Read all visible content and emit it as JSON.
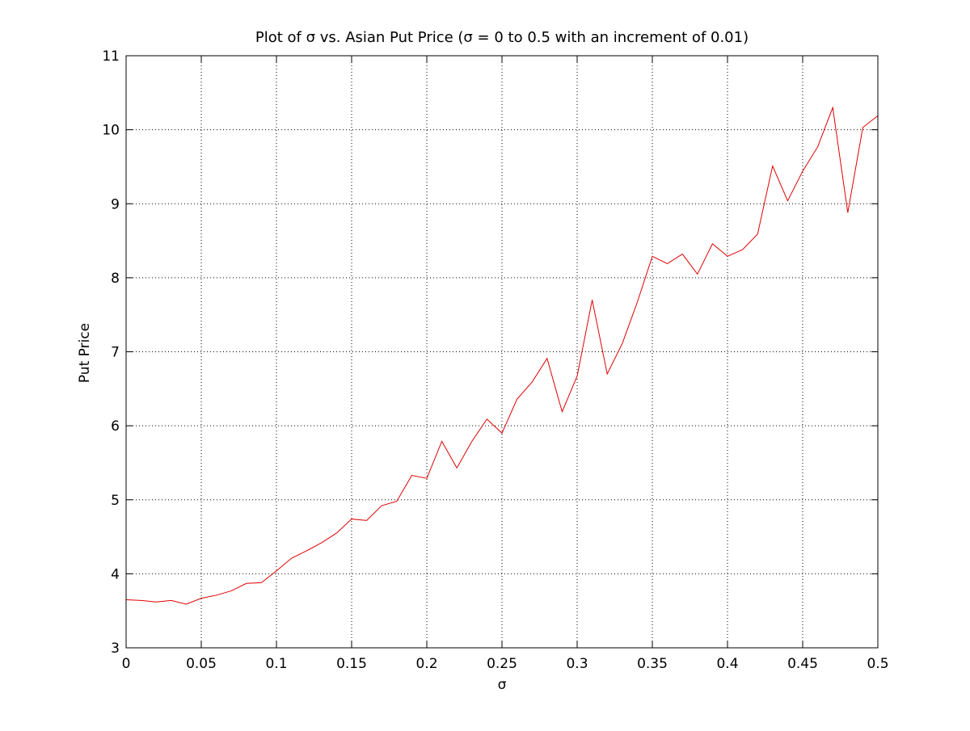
{
  "chart_data": {
    "type": "line",
    "title": "Plot of σ vs. Asian Put Price (σ = 0 to 0.5 with an increment of 0.01)",
    "xlabel": "σ",
    "ylabel": "Put Price",
    "xlim": [
      0,
      0.5
    ],
    "ylim": [
      3,
      11
    ],
    "xticks": [
      0,
      0.05,
      0.1,
      0.15,
      0.2,
      0.25,
      0.3,
      0.35,
      0.4,
      0.45,
      0.5
    ],
    "xtick_labels": [
      "0",
      "0.05",
      "0.1",
      "0.15",
      "0.2",
      "0.25",
      "0.3",
      "0.35",
      "0.4",
      "0.45",
      "0.5"
    ],
    "yticks": [
      3,
      4,
      5,
      6,
      7,
      8,
      9,
      10,
      11
    ],
    "ytick_labels": [
      "3",
      "4",
      "5",
      "6",
      "7",
      "8",
      "9",
      "10",
      "11"
    ],
    "grid": true,
    "grid_style": "dotted",
    "series": [
      {
        "color": "#e00000",
        "x": [
          0,
          0.01,
          0.02,
          0.03,
          0.04,
          0.05,
          0.06,
          0.07,
          0.08,
          0.09,
          0.1,
          0.11,
          0.12,
          0.13,
          0.14,
          0.15,
          0.16,
          0.17,
          0.18,
          0.19,
          0.2,
          0.21,
          0.22,
          0.23,
          0.24,
          0.25,
          0.26,
          0.27,
          0.28,
          0.29,
          0.3,
          0.31,
          0.32,
          0.33,
          0.34,
          0.35,
          0.36,
          0.37,
          0.38,
          0.39,
          0.4,
          0.41,
          0.42,
          0.43,
          0.44,
          0.45,
          0.46,
          0.47,
          0.48,
          0.49,
          0.5
        ],
        "values": [
          3.65,
          3.64,
          3.62,
          3.64,
          3.59,
          3.67,
          3.71,
          3.77,
          3.87,
          3.88,
          4.04,
          4.21,
          4.31,
          4.42,
          4.55,
          4.74,
          4.72,
          4.92,
          4.98,
          5.33,
          5.29,
          5.79,
          5.43,
          5.79,
          6.09,
          5.9,
          6.36,
          6.59,
          6.91,
          6.19,
          6.67,
          7.7,
          6.7,
          7.11,
          7.67,
          8.29,
          8.19,
          8.32,
          8.05,
          8.46,
          8.29,
          8.38,
          8.59,
          9.51,
          9.04,
          9.44,
          9.77,
          10.3,
          8.88,
          10.03,
          10.19
        ]
      }
    ]
  }
}
